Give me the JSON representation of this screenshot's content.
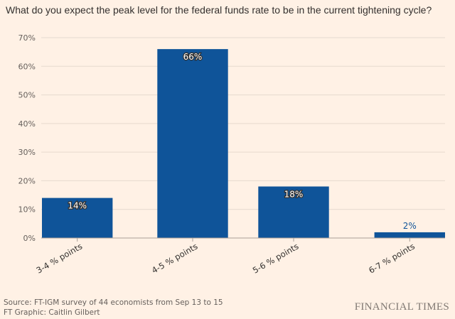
{
  "title": "What do you expect the peak level for the federal funds rate to be in the current tightening cycle?",
  "source": "Source: FT-IGM survey of 44 economists from Sep 13 to 15",
  "credit": "FT Graphic: Caitlin Gilbert",
  "logo": "FINANCIAL TIMES",
  "colors": {
    "bar": "#0f5499",
    "background": "#fff1e5",
    "grid": "#e6d9ce"
  },
  "chart_data": {
    "type": "bar",
    "title": "What do you expect the peak level for the federal funds rate to be in the current tightening cycle?",
    "categories": [
      "3-4 % points",
      "4-5 % points",
      "5-6 % points",
      "6-7 % points"
    ],
    "values": [
      14,
      66,
      18,
      2
    ],
    "data_labels": [
      "14%",
      "66%",
      "18%",
      "2%"
    ],
    "ylim": [
      0,
      70
    ],
    "yticks": [
      "0%",
      "10%",
      "20%",
      "30%",
      "40%",
      "50%",
      "60%",
      "70%"
    ],
    "grid": true,
    "xlabel": "",
    "ylabel": ""
  }
}
